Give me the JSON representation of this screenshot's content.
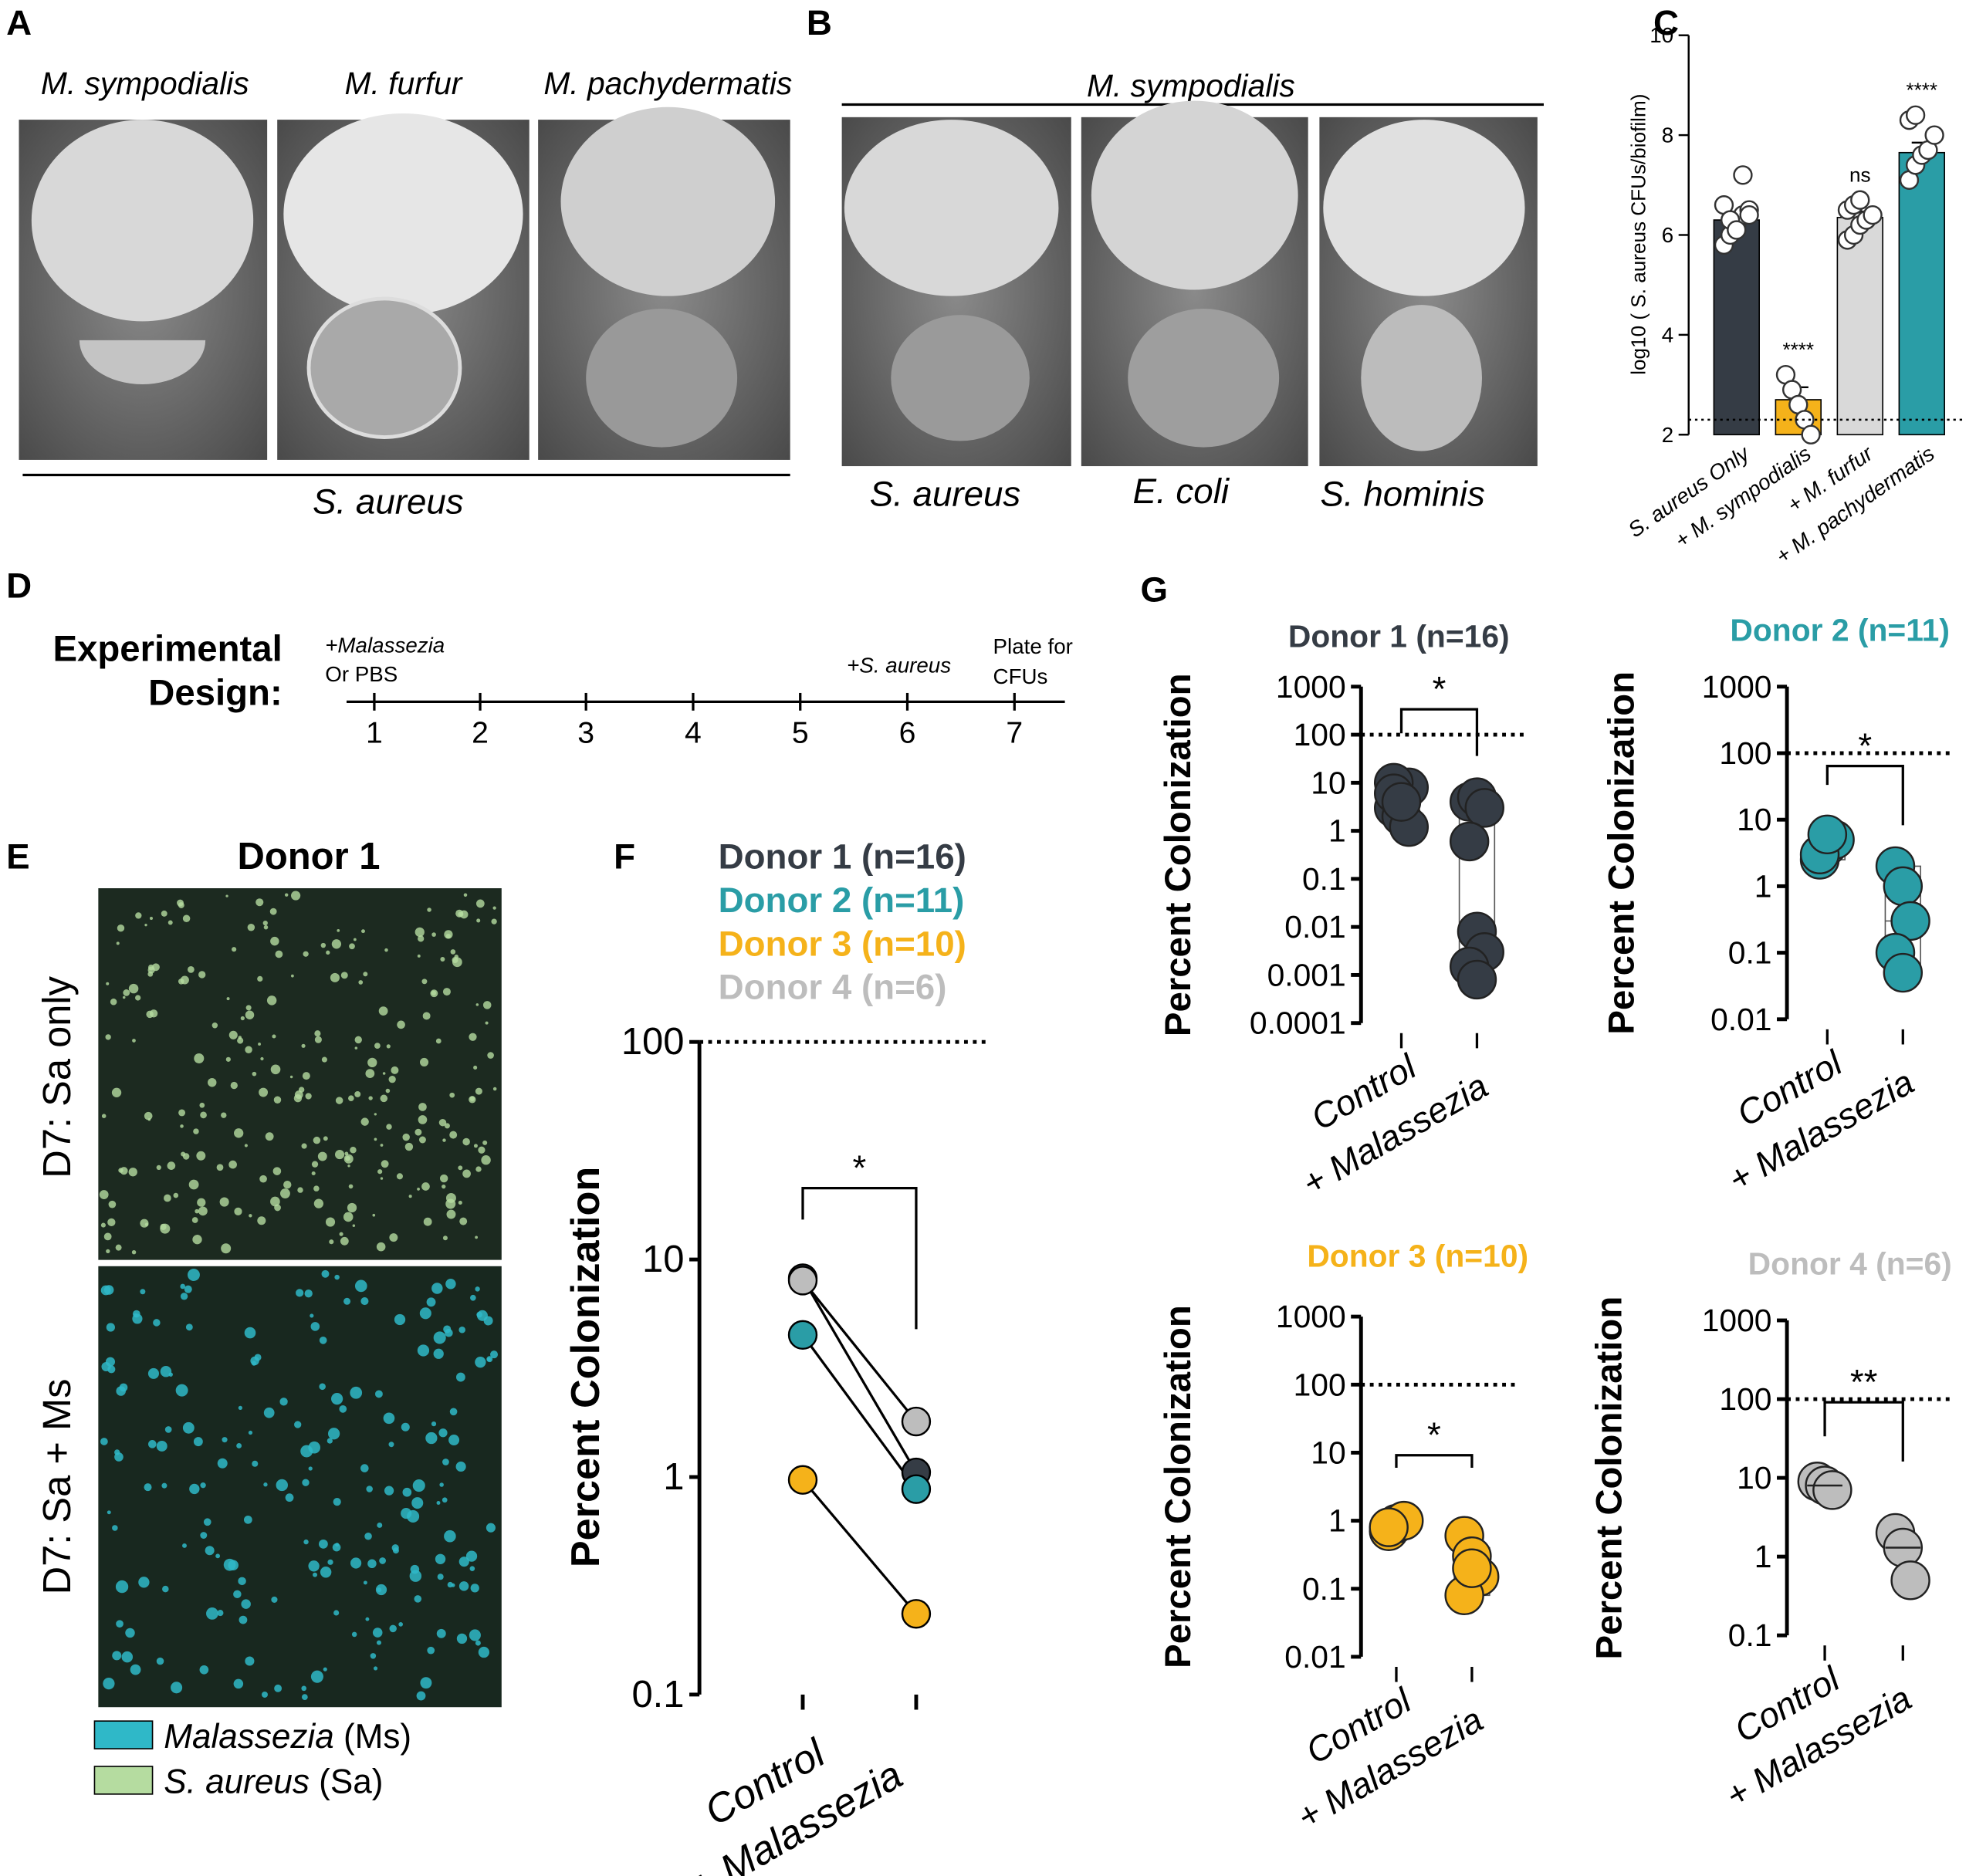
{
  "panels": {
    "A": {
      "letter": "A",
      "columns": [
        "M. sympodialis",
        "M. furfur",
        "M. pachydermatis"
      ],
      "base": "S. aureus"
    },
    "B": {
      "letter": "B",
      "top": "M. sympodialis",
      "columns": [
        "S. aureus",
        "E. coli",
        "S. hominis"
      ]
    },
    "C": {
      "letter": "C"
    },
    "D": {
      "letter": "D",
      "title": [
        "Experimental",
        "Design:"
      ],
      "days": [
        "1",
        "2",
        "3",
        "4",
        "5",
        "6",
        "7"
      ],
      "start": [
        "+Malassezia",
        "Or PBS"
      ],
      "infect": "+S. aureus",
      "end": [
        "Plate for",
        "CFUs"
      ]
    },
    "E": {
      "letter": "E",
      "title": "Donor 1",
      "rows": [
        "D7: Sa only",
        "D7: Sa + Ms"
      ],
      "legend": [
        {
          "name": "Malassezia",
          "suffix": "(Ms)",
          "color": "#2fb8c8"
        },
        {
          "name": "S. aureus",
          "suffix": "(Sa)",
          "color": "#b5dca0"
        }
      ]
    },
    "F": {
      "letter": "F"
    },
    "G": {
      "letter": "G"
    }
  },
  "chart_data": [
    {
      "type": "bar",
      "ylabel": "log10 ( S. aureus CFUs/biofilm)",
      "categories": [
        "S. aureus Only",
        "+ M. sympodialis",
        "+ M. furfur",
        "+ M. pachydermatis"
      ],
      "values": [
        6.3,
        2.7,
        6.35,
        7.65
      ],
      "errors": [
        0.15,
        0.25,
        0.12,
        0.2
      ],
      "colors": [
        "#353c45",
        "#f5b21a",
        "#d9d9d9",
        "#2a9da6"
      ],
      "points": [
        [
          5.8,
          6.0,
          6.2,
          6.4,
          6.5,
          6.6,
          6.3,
          6.1,
          7.2,
          6.4
        ],
        [
          3.2,
          2.9,
          2.6,
          2.3,
          2.0
        ],
        [
          5.9,
          6.0,
          6.2,
          6.3,
          6.4,
          6.5,
          6.6,
          6.7
        ],
        [
          7.1,
          7.4,
          7.6,
          7.7,
          8.0,
          8.3,
          8.4
        ]
      ],
      "significance": [
        null,
        "****",
        "ns",
        "****"
      ],
      "limit_line": 2.3,
      "ylim": [
        2,
        10
      ],
      "yticks": [
        2,
        4,
        6,
        8,
        10
      ]
    },
    {
      "type": "line",
      "ylabel": "Percent  Colonization",
      "categories": [
        "Control",
        "+ Malassezia"
      ],
      "log": true,
      "series": [
        {
          "name": "Donor 1 (n=16)",
          "color": "#353c45",
          "values": [
            8.2,
            1.05
          ]
        },
        {
          "name": "Donor 2 (n=11)",
          "color": "#2a9da6",
          "values": [
            4.5,
            0.88
          ]
        },
        {
          "name": "Donor 3 (n=10)",
          "color": "#f5b21a",
          "values": [
            0.97,
            0.235
          ]
        },
        {
          "name": "Donor 4 (n=6)",
          "color": "#bdbdbd",
          "values": [
            8.0,
            1.8
          ]
        }
      ],
      "reference_line": 100,
      "significance": "*",
      "ylim": [
        0.1,
        100
      ],
      "yticks": [
        0.1,
        1,
        10,
        100
      ]
    },
    {
      "type": "box",
      "title": "Donor 1 (n=16)",
      "color": "#353c45",
      "ylabel": "Percent Colonization",
      "categories": [
        "Control",
        "+ Malassezia"
      ],
      "log": true,
      "points": [
        [
          3,
          5,
          8,
          10,
          2,
          1.2,
          6,
          4
        ],
        [
          4,
          5,
          3,
          0.6,
          0.008,
          0.003,
          0.0015,
          0.0008
        ]
      ],
      "boxes": [
        [
          2,
          6,
          10
        ],
        [
          0.002,
          0.01,
          2.5
        ]
      ],
      "reference_line": 100,
      "significance": "*",
      "ylim": [
        0.0001,
        1000
      ],
      "yticks": [
        0.0001,
        0.001,
        0.01,
        0.1,
        1,
        10,
        100,
        1000
      ]
    },
    {
      "type": "box",
      "title": "Donor 2 (n=11)",
      "color": "#2a9da6",
      "ylabel": "Percent Colonization",
      "categories": [
        "Control",
        "+ Malassezia"
      ],
      "log": true,
      "points": [
        [
          2.5,
          4,
          5,
          3,
          6
        ],
        [
          2,
          1,
          0.3,
          0.1,
          0.05
        ]
      ],
      "boxes": [
        [
          2.5,
          4,
          7
        ],
        [
          0.05,
          0.3,
          2
        ]
      ],
      "reference_line": 100,
      "significance": "*",
      "ylim": [
        0.01,
        1000
      ],
      "yticks": [
        0.01,
        0.1,
        1,
        10,
        100,
        1000
      ]
    },
    {
      "type": "box",
      "title": "Donor 3 (n=10)",
      "color": "#f5b21a",
      "ylabel": "Percent Colonization",
      "categories": [
        "Control",
        "+ Malassezia"
      ],
      "log": true,
      "points": [
        [
          0.7,
          0.9,
          1.0,
          0.8
        ],
        [
          0.6,
          0.3,
          0.15,
          0.08,
          0.2
        ]
      ],
      "boxes": [
        [
          0.7,
          0.85,
          1.0
        ],
        [
          0.08,
          0.2,
          0.4
        ]
      ],
      "reference_line": 100,
      "significance": "*",
      "ylim": [
        0.01,
        1000
      ],
      "yticks": [
        0.01,
        0.1,
        1,
        10,
        100,
        1000
      ]
    },
    {
      "type": "box",
      "title": "Donor 4 (n=6)",
      "color": "#bdbdbd",
      "ylabel": "Percent Colonization",
      "categories": [
        "Control",
        "+ Malassezia"
      ],
      "log": true,
      "points": [
        [
          9,
          8,
          7
        ],
        [
          2,
          1.3,
          0.5
        ]
      ],
      "medians": [
        8,
        1.3
      ],
      "reference_line": 100,
      "significance": "**",
      "ylim": [
        0.1,
        1000
      ],
      "yticks": [
        0.1,
        1,
        10,
        100,
        1000
      ]
    }
  ]
}
